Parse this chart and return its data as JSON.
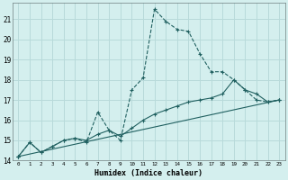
{
  "xlabel": "Humidex (Indice chaleur)",
  "bg_color": "#d4efee",
  "grid_color": "#b8dada",
  "line_color": "#206060",
  "xlim": [
    -0.5,
    23.5
  ],
  "ylim": [
    14.0,
    21.8
  ],
  "yticks": [
    14,
    15,
    16,
    17,
    18,
    19,
    20,
    21
  ],
  "xticks": [
    0,
    1,
    2,
    3,
    4,
    5,
    6,
    7,
    8,
    9,
    10,
    11,
    12,
    13,
    14,
    15,
    16,
    17,
    18,
    19,
    20,
    21,
    22,
    23
  ],
  "series": [
    {
      "x": [
        0,
        1,
        2,
        3,
        4,
        5,
        6,
        7,
        8,
        9,
        10,
        11,
        12,
        13,
        14,
        15,
        16,
        17,
        18,
        19,
        20,
        21,
        22,
        23
      ],
      "y": [
        14.2,
        14.9,
        14.4,
        14.7,
        15.0,
        15.1,
        14.9,
        16.4,
        15.5,
        15.0,
        17.5,
        18.1,
        21.5,
        20.9,
        20.5,
        20.4,
        19.3,
        18.4,
        18.4,
        18.0,
        17.5,
        17.0,
        16.9,
        17.0
      ],
      "linestyle": "--"
    },
    {
      "x": [
        0,
        1,
        2,
        3,
        4,
        5,
        6,
        7,
        8,
        9,
        10,
        11,
        12,
        13,
        14,
        15,
        16,
        17,
        18,
        19,
        20,
        21,
        22,
        23
      ],
      "y": [
        14.2,
        14.9,
        14.4,
        14.7,
        15.0,
        15.1,
        15.0,
        15.3,
        15.5,
        15.2,
        15.6,
        16.0,
        16.3,
        16.5,
        16.7,
        16.9,
        17.0,
        17.1,
        17.3,
        18.0,
        17.5,
        17.3,
        16.9,
        17.0
      ],
      "linestyle": "-"
    },
    {
      "x": [
        0,
        23
      ],
      "y": [
        14.2,
        17.0
      ],
      "linestyle": "-"
    }
  ]
}
